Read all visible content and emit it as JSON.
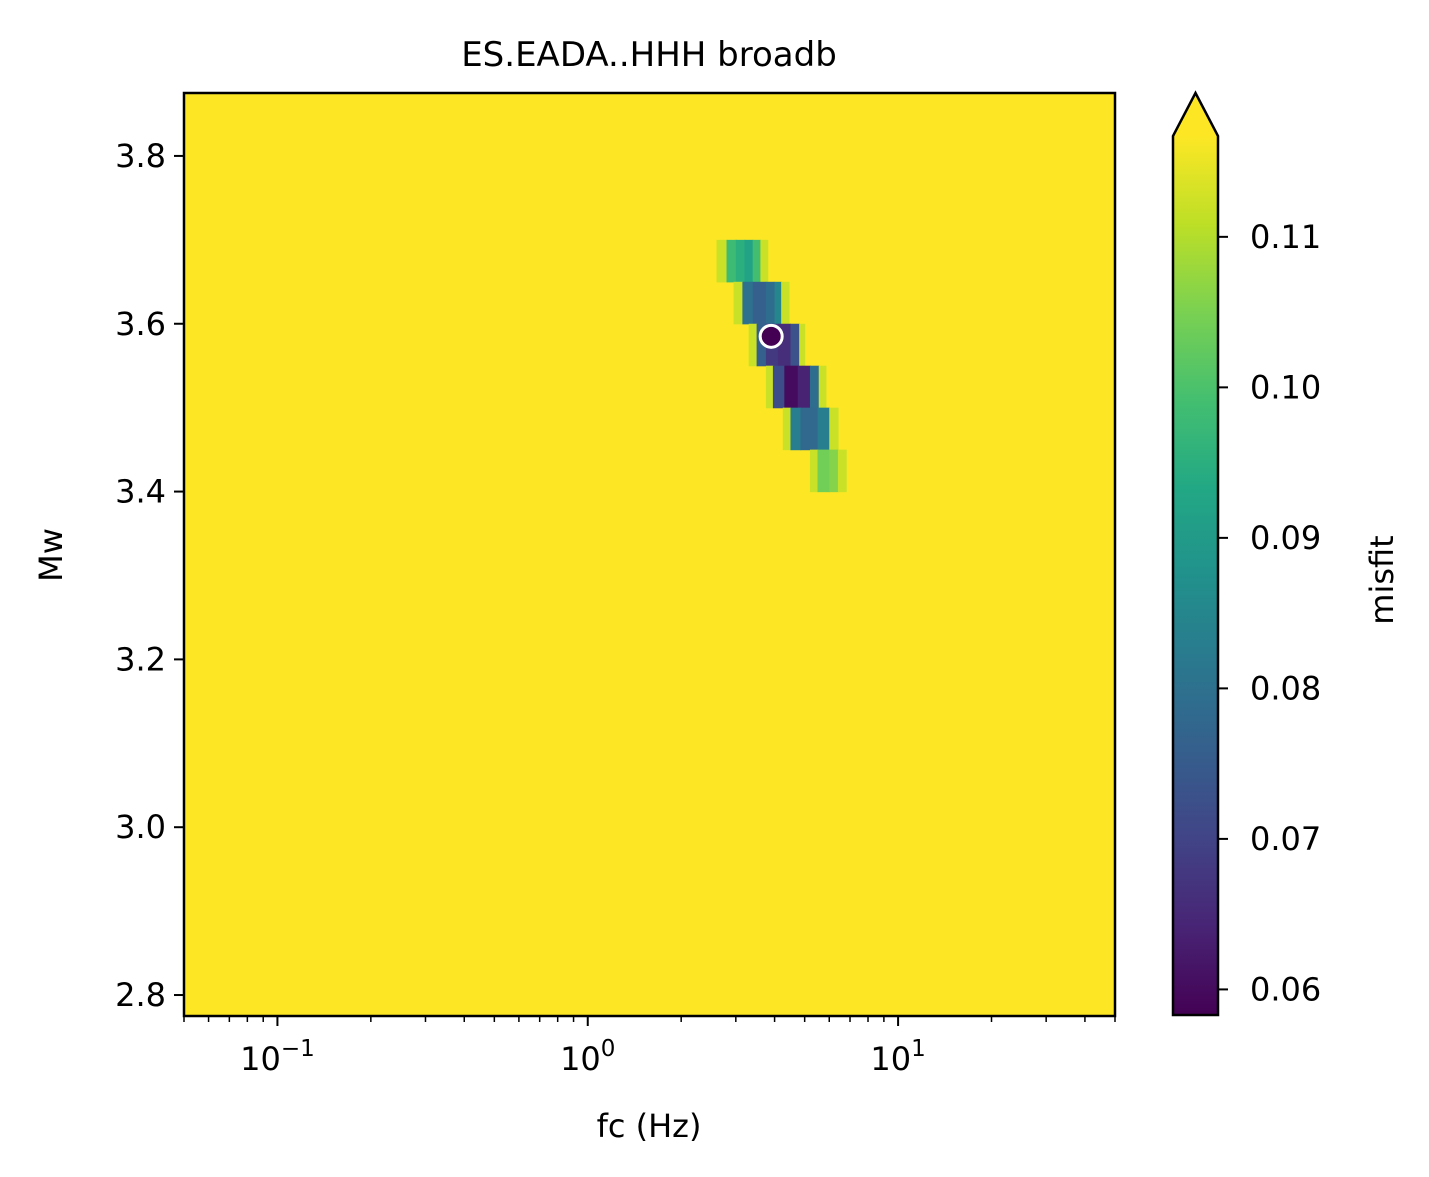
{
  "chart_data": {
    "type": "heatmap",
    "title": "ES.EADA..HHH broadb",
    "xlabel": "fc (Hz)",
    "ylabel": "Mw",
    "xscale": "log",
    "xlim": [
      0.05,
      50
    ],
    "ylim": [
      2.775,
      3.875
    ],
    "xticks": [
      {
        "value": 0.1,
        "base": "10",
        "exp": "−1"
      },
      {
        "value": 1,
        "base": "10",
        "exp": "0"
      },
      {
        "value": 10,
        "base": "10",
        "exp": "1"
      }
    ],
    "yticks": [
      {
        "value": 2.8,
        "label": "2.8"
      },
      {
        "value": 3.0,
        "label": "3.0"
      },
      {
        "value": 3.2,
        "label": "3.2"
      },
      {
        "value": 3.4,
        "label": "3.4"
      },
      {
        "value": 3.6,
        "label": "3.6"
      },
      {
        "value": 3.8,
        "label": "3.8"
      }
    ],
    "background_color": "#fde725",
    "cells": [
      {
        "mw": 3.675,
        "fc": [
          2.6,
          2.8
        ],
        "misfit": 0.112
      },
      {
        "mw": 3.675,
        "fc": [
          2.8,
          3.0
        ],
        "misfit": 0.098
      },
      {
        "mw": 3.675,
        "fc": [
          3.0,
          3.2
        ],
        "misfit": 0.095
      },
      {
        "mw": 3.675,
        "fc": [
          3.2,
          3.4
        ],
        "misfit": 0.092
      },
      {
        "mw": 3.675,
        "fc": [
          3.4,
          3.6
        ],
        "misfit": 0.099
      },
      {
        "mw": 3.675,
        "fc": [
          3.6,
          3.8
        ],
        "misfit": 0.112
      },
      {
        "mw": 3.625,
        "fc": [
          2.95,
          3.15
        ],
        "misfit": 0.112
      },
      {
        "mw": 3.625,
        "fc": [
          3.15,
          3.4
        ],
        "misfit": 0.08
      },
      {
        "mw": 3.625,
        "fc": [
          3.4,
          3.75
        ],
        "misfit": 0.076
      },
      {
        "mw": 3.625,
        "fc": [
          3.75,
          4.0
        ],
        "misfit": 0.079
      },
      {
        "mw": 3.625,
        "fc": [
          4.0,
          4.2
        ],
        "misfit": 0.085
      },
      {
        "mw": 3.625,
        "fc": [
          4.2,
          4.45
        ],
        "misfit": 0.112
      },
      {
        "mw": 3.575,
        "fc": [
          3.3,
          3.5
        ],
        "misfit": 0.112
      },
      {
        "mw": 3.575,
        "fc": [
          3.5,
          3.75
        ],
        "misfit": 0.076
      },
      {
        "mw": 3.575,
        "fc": [
          3.75,
          4.1
        ],
        "misfit": 0.068
      },
      {
        "mw": 3.575,
        "fc": [
          4.1,
          4.5
        ],
        "misfit": 0.066
      },
      {
        "mw": 3.575,
        "fc": [
          4.5,
          4.8
        ],
        "misfit": 0.073
      },
      {
        "mw": 3.575,
        "fc": [
          4.8,
          5.0
        ],
        "misfit": 0.112
      },
      {
        "mw": 3.525,
        "fc": [
          3.75,
          3.95
        ],
        "misfit": 0.112
      },
      {
        "mw": 3.525,
        "fc": [
          3.95,
          4.3
        ],
        "misfit": 0.072
      },
      {
        "mw": 3.525,
        "fc": [
          4.3,
          4.75
        ],
        "misfit": 0.06
      },
      {
        "mw": 3.525,
        "fc": [
          4.75,
          5.2
        ],
        "misfit": 0.064
      },
      {
        "mw": 3.525,
        "fc": [
          5.2,
          5.55
        ],
        "misfit": 0.079
      },
      {
        "mw": 3.525,
        "fc": [
          5.55,
          5.85
        ],
        "misfit": 0.112
      },
      {
        "mw": 3.475,
        "fc": [
          4.25,
          4.5
        ],
        "misfit": 0.112
      },
      {
        "mw": 3.475,
        "fc": [
          4.5,
          4.85
        ],
        "misfit": 0.083
      },
      {
        "mw": 3.475,
        "fc": [
          4.85,
          5.5
        ],
        "misfit": 0.078
      },
      {
        "mw": 3.475,
        "fc": [
          5.5,
          6.0
        ],
        "misfit": 0.083
      },
      {
        "mw": 3.475,
        "fc": [
          6.0,
          6.4
        ],
        "misfit": 0.112
      },
      {
        "mw": 3.425,
        "fc": [
          5.2,
          5.5
        ],
        "misfit": 0.112
      },
      {
        "mw": 3.425,
        "fc": [
          5.5,
          6.0
        ],
        "misfit": 0.104
      },
      {
        "mw": 3.425,
        "fc": [
          6.0,
          6.4
        ],
        "misfit": 0.106
      },
      {
        "mw": 3.425,
        "fc": [
          6.4,
          6.8
        ],
        "misfit": 0.112
      }
    ],
    "best_fit": {
      "fc": 3.9,
      "mw": 3.585
    },
    "colorbar": {
      "label": "misfit",
      "range": [
        0.0583,
        0.1167
      ],
      "extend": "max",
      "ticks": [
        {
          "value": 0.06,
          "label": "0.06"
        },
        {
          "value": 0.07,
          "label": "0.07"
        },
        {
          "value": 0.08,
          "label": "0.08"
        },
        {
          "value": 0.09,
          "label": "0.09"
        },
        {
          "value": 0.1,
          "label": "0.10"
        },
        {
          "value": 0.11,
          "label": "0.11"
        }
      ],
      "colormap": [
        "#440154",
        "#482475",
        "#414487",
        "#355f8d",
        "#2a788e",
        "#21918c",
        "#22a884",
        "#44bf70",
        "#7ad151",
        "#bddf26",
        "#fde725"
      ]
    }
  }
}
